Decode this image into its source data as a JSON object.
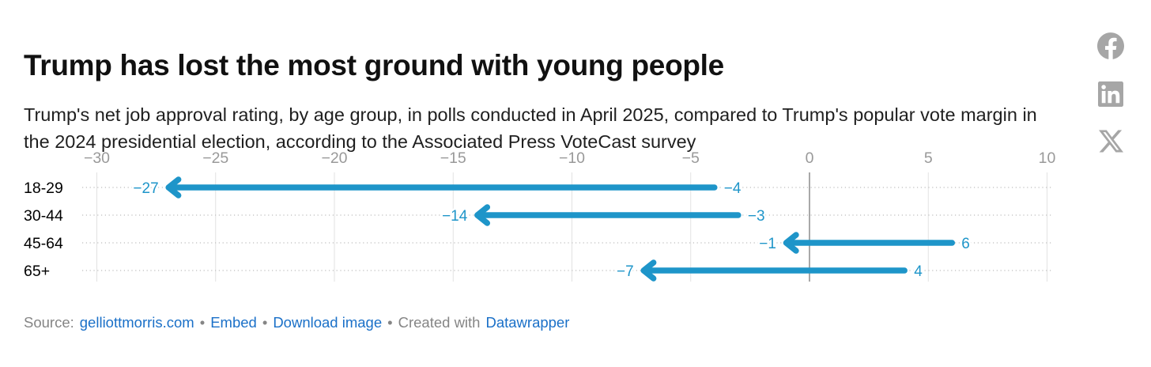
{
  "header": {
    "title": "Trump has lost the most ground with young people",
    "subtitle": "Trump's net job approval rating, by age group, in polls conducted in April 2025, compared to Trump's popular vote margin in the 2024 presidential election, according to the Associated Press VoteCast survey"
  },
  "share": {
    "icons": [
      "facebook-icon",
      "linkedin-icon",
      "x-icon"
    ]
  },
  "chart_data": {
    "type": "arrow",
    "orientation": "horizontal",
    "title": "Trump has lost the most ground with young people",
    "subtitle": "Trump's net job approval rating, by age group, in polls conducted in April 2025, compared to Trump's popular vote margin in the 2024 presidential election, according to the Associated Press VoteCast survey",
    "categories": [
      "18-29",
      "30-44",
      "45-64",
      "65+"
    ],
    "series": [
      {
        "name": "start",
        "values": [
          -4,
          -3,
          6,
          4
        ]
      },
      {
        "name": "end",
        "values": [
          -27,
          -14,
          -1,
          -7
        ]
      }
    ],
    "x_ticks": [
      -30,
      -25,
      -20,
      -15,
      -10,
      -5,
      0,
      5,
      10
    ],
    "xlim": [
      -30,
      10
    ],
    "grid": "vertical",
    "zero_line": true,
    "legend": "none"
  },
  "footer": {
    "source_label": "Source:",
    "source_link": "gelliottmorris.com",
    "separator": "•",
    "embed_label": "Embed",
    "download_label": "Download image",
    "created_with_label": "Created with",
    "datawrapper_label": "Datawrapper"
  },
  "colors": {
    "arrow": "#1e95c9",
    "value_label": "#1e95c9",
    "link": "#1a70c8",
    "grid": "#e2e2e2",
    "zero_line": "#a8a8a8",
    "leader_dots": "#c8c8c8",
    "tick_label": "#999999",
    "row_label": "#000000",
    "footer_text": "#858585",
    "icon": "#a6a6a6",
    "title_text": "#111111"
  }
}
